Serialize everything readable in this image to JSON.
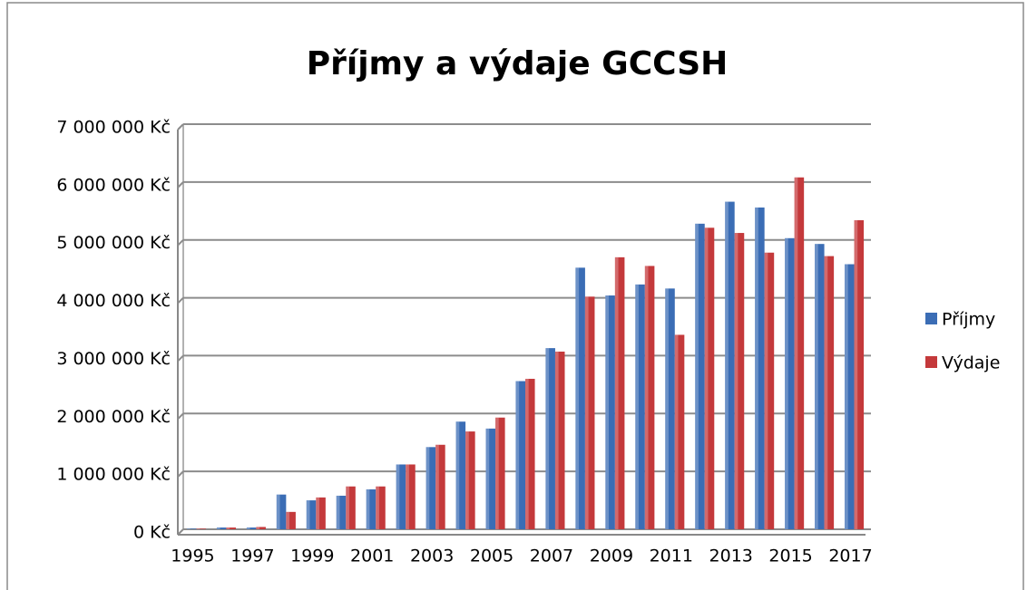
{
  "chart_data": {
    "type": "bar",
    "title": "Příjmy a výdaje GCCSH",
    "categories": [
      "1995",
      null,
      "1997",
      null,
      "1999",
      null,
      "2001",
      null,
      "2003",
      null,
      "2005",
      null,
      "2007",
      null,
      "2009",
      null,
      "2011",
      null,
      "2013",
      null,
      "2015",
      null,
      "2017"
    ],
    "series": [
      {
        "name": "Příjmy",
        "color": "#3b6db5",
        "values": [
          10000,
          30000,
          30000,
          600000,
          500000,
          580000,
          690000,
          1120000,
          1420000,
          1860000,
          1740000,
          2560000,
          3130000,
          4520000,
          4040000,
          4230000,
          4160000,
          5280000,
          5660000,
          5560000,
          5030000,
          4930000,
          4580000
        ]
      },
      {
        "name": "Výdaje",
        "color": "#c4393b",
        "values": [
          10000,
          30000,
          40000,
          300000,
          550000,
          740000,
          740000,
          1120000,
          1460000,
          1690000,
          1930000,
          2600000,
          3070000,
          4020000,
          4700000,
          4550000,
          3360000,
          5210000,
          5120000,
          4780000,
          6080000,
          4720000,
          5340000
        ]
      }
    ],
    "ylim": [
      0,
      7000000
    ],
    "yticks": [
      {
        "value": 0,
        "label": "0 Kč"
      },
      {
        "value": 1000000,
        "label": "1 000 000 Kč"
      },
      {
        "value": 2000000,
        "label": "2 000 000 Kč"
      },
      {
        "value": 3000000,
        "label": "3 000 000 Kč"
      },
      {
        "value": 4000000,
        "label": "4 000 000 Kč"
      },
      {
        "value": 5000000,
        "label": "5 000 000 Kč"
      },
      {
        "value": 6000000,
        "label": "6 000 000 Kč"
      },
      {
        "value": 7000000,
        "label": "7 000 000 Kč"
      }
    ],
    "grid": true,
    "legend": "right"
  }
}
